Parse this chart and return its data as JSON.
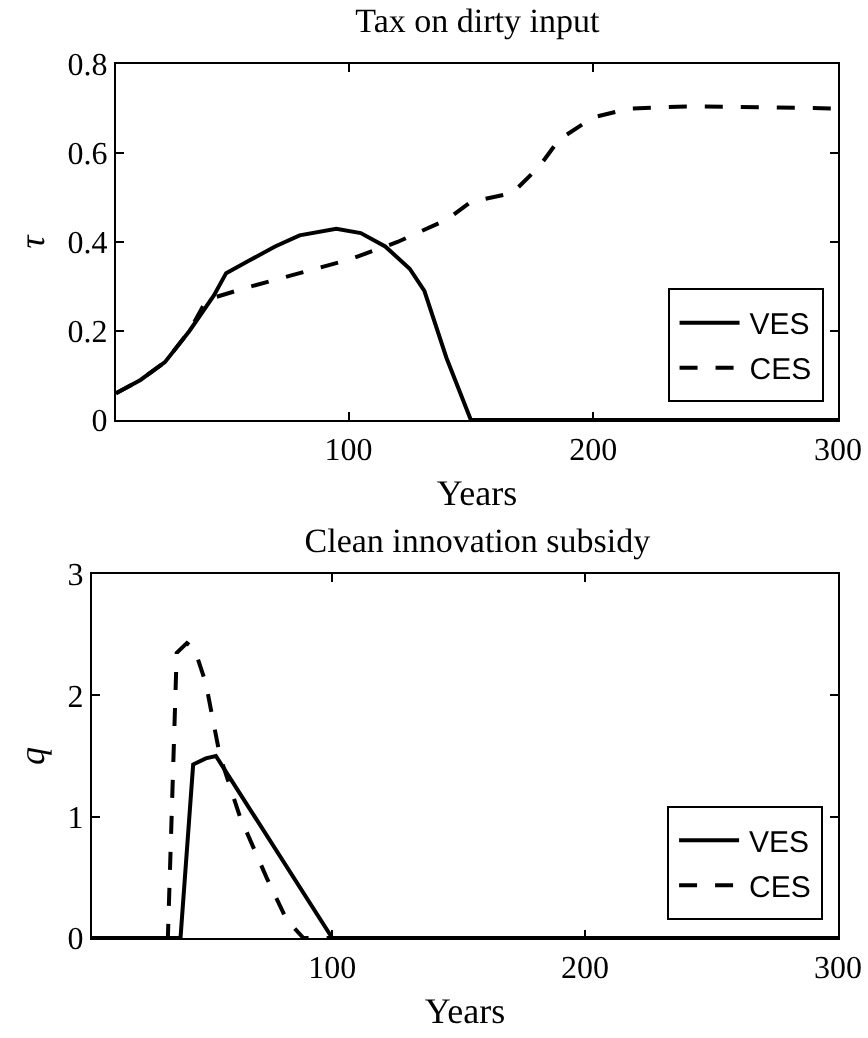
{
  "chart_data": [
    {
      "type": "line",
      "title": "Tax on dirty input",
      "xlabel": "Years",
      "ylabel": "τ",
      "xlim": [
        5,
        300
      ],
      "xticks": [
        100,
        200,
        300
      ],
      "ylim": [
        0,
        0.8
      ],
      "yticks": [
        0,
        0.2,
        0.4,
        0.6,
        0.8
      ],
      "legend": "bottom right",
      "series": [
        {
          "name": "VES",
          "color": "#000000",
          "line_style": "solid",
          "x": [
            5,
            15,
            25,
            35,
            45,
            50,
            60,
            70,
            80,
            95,
            105,
            115,
            125,
            131,
            140,
            150,
            300
          ],
          "values": [
            0.06,
            0.09,
            0.13,
            0.2,
            0.28,
            0.33,
            0.36,
            0.39,
            0.415,
            0.43,
            0.42,
            0.39,
            0.34,
            0.29,
            0.14,
            0,
            0
          ]
        },
        {
          "name": "CES",
          "color": "#000000",
          "line_style": "dashed",
          "x": [
            5,
            15,
            25,
            35,
            42,
            60,
            80,
            100,
            120,
            140,
            150,
            167,
            178,
            186,
            200,
            215,
            240,
            300
          ],
          "values": [
            0.06,
            0.09,
            0.13,
            0.2,
            0.27,
            0.3,
            0.33,
            0.36,
            0.4,
            0.45,
            0.49,
            0.51,
            0.57,
            0.63,
            0.68,
            0.7,
            0.705,
            0.7
          ]
        }
      ]
    },
    {
      "type": "line",
      "title": "Clean innovation subsidy",
      "xlabel": "Years",
      "ylabel": "q",
      "xlim": [
        5,
        300
      ],
      "xticks": [
        100,
        200,
        300
      ],
      "ylim": [
        0,
        3
      ],
      "yticks": [
        0,
        1,
        2,
        3
      ],
      "legend": "bottom right",
      "series": [
        {
          "name": "VES",
          "color": "#000000",
          "line_style": "solid",
          "x": [
            5,
            40,
            45,
            50,
            54,
            100,
            300
          ],
          "values": [
            0,
            0,
            1.43,
            1.48,
            1.5,
            0,
            0
          ]
        },
        {
          "name": "CES",
          "color": "#000000",
          "line_style": "dashed",
          "x": [
            5,
            35,
            38.5,
            42.5,
            45.6,
            50,
            55.6,
            63.5,
            74,
            82,
            88.6,
            300
          ],
          "values": [
            0,
            0,
            2.35,
            2.43,
            2.38,
            2.1,
            1.5,
            1.0,
            0.5,
            0.15,
            0,
            0
          ]
        }
      ]
    }
  ]
}
